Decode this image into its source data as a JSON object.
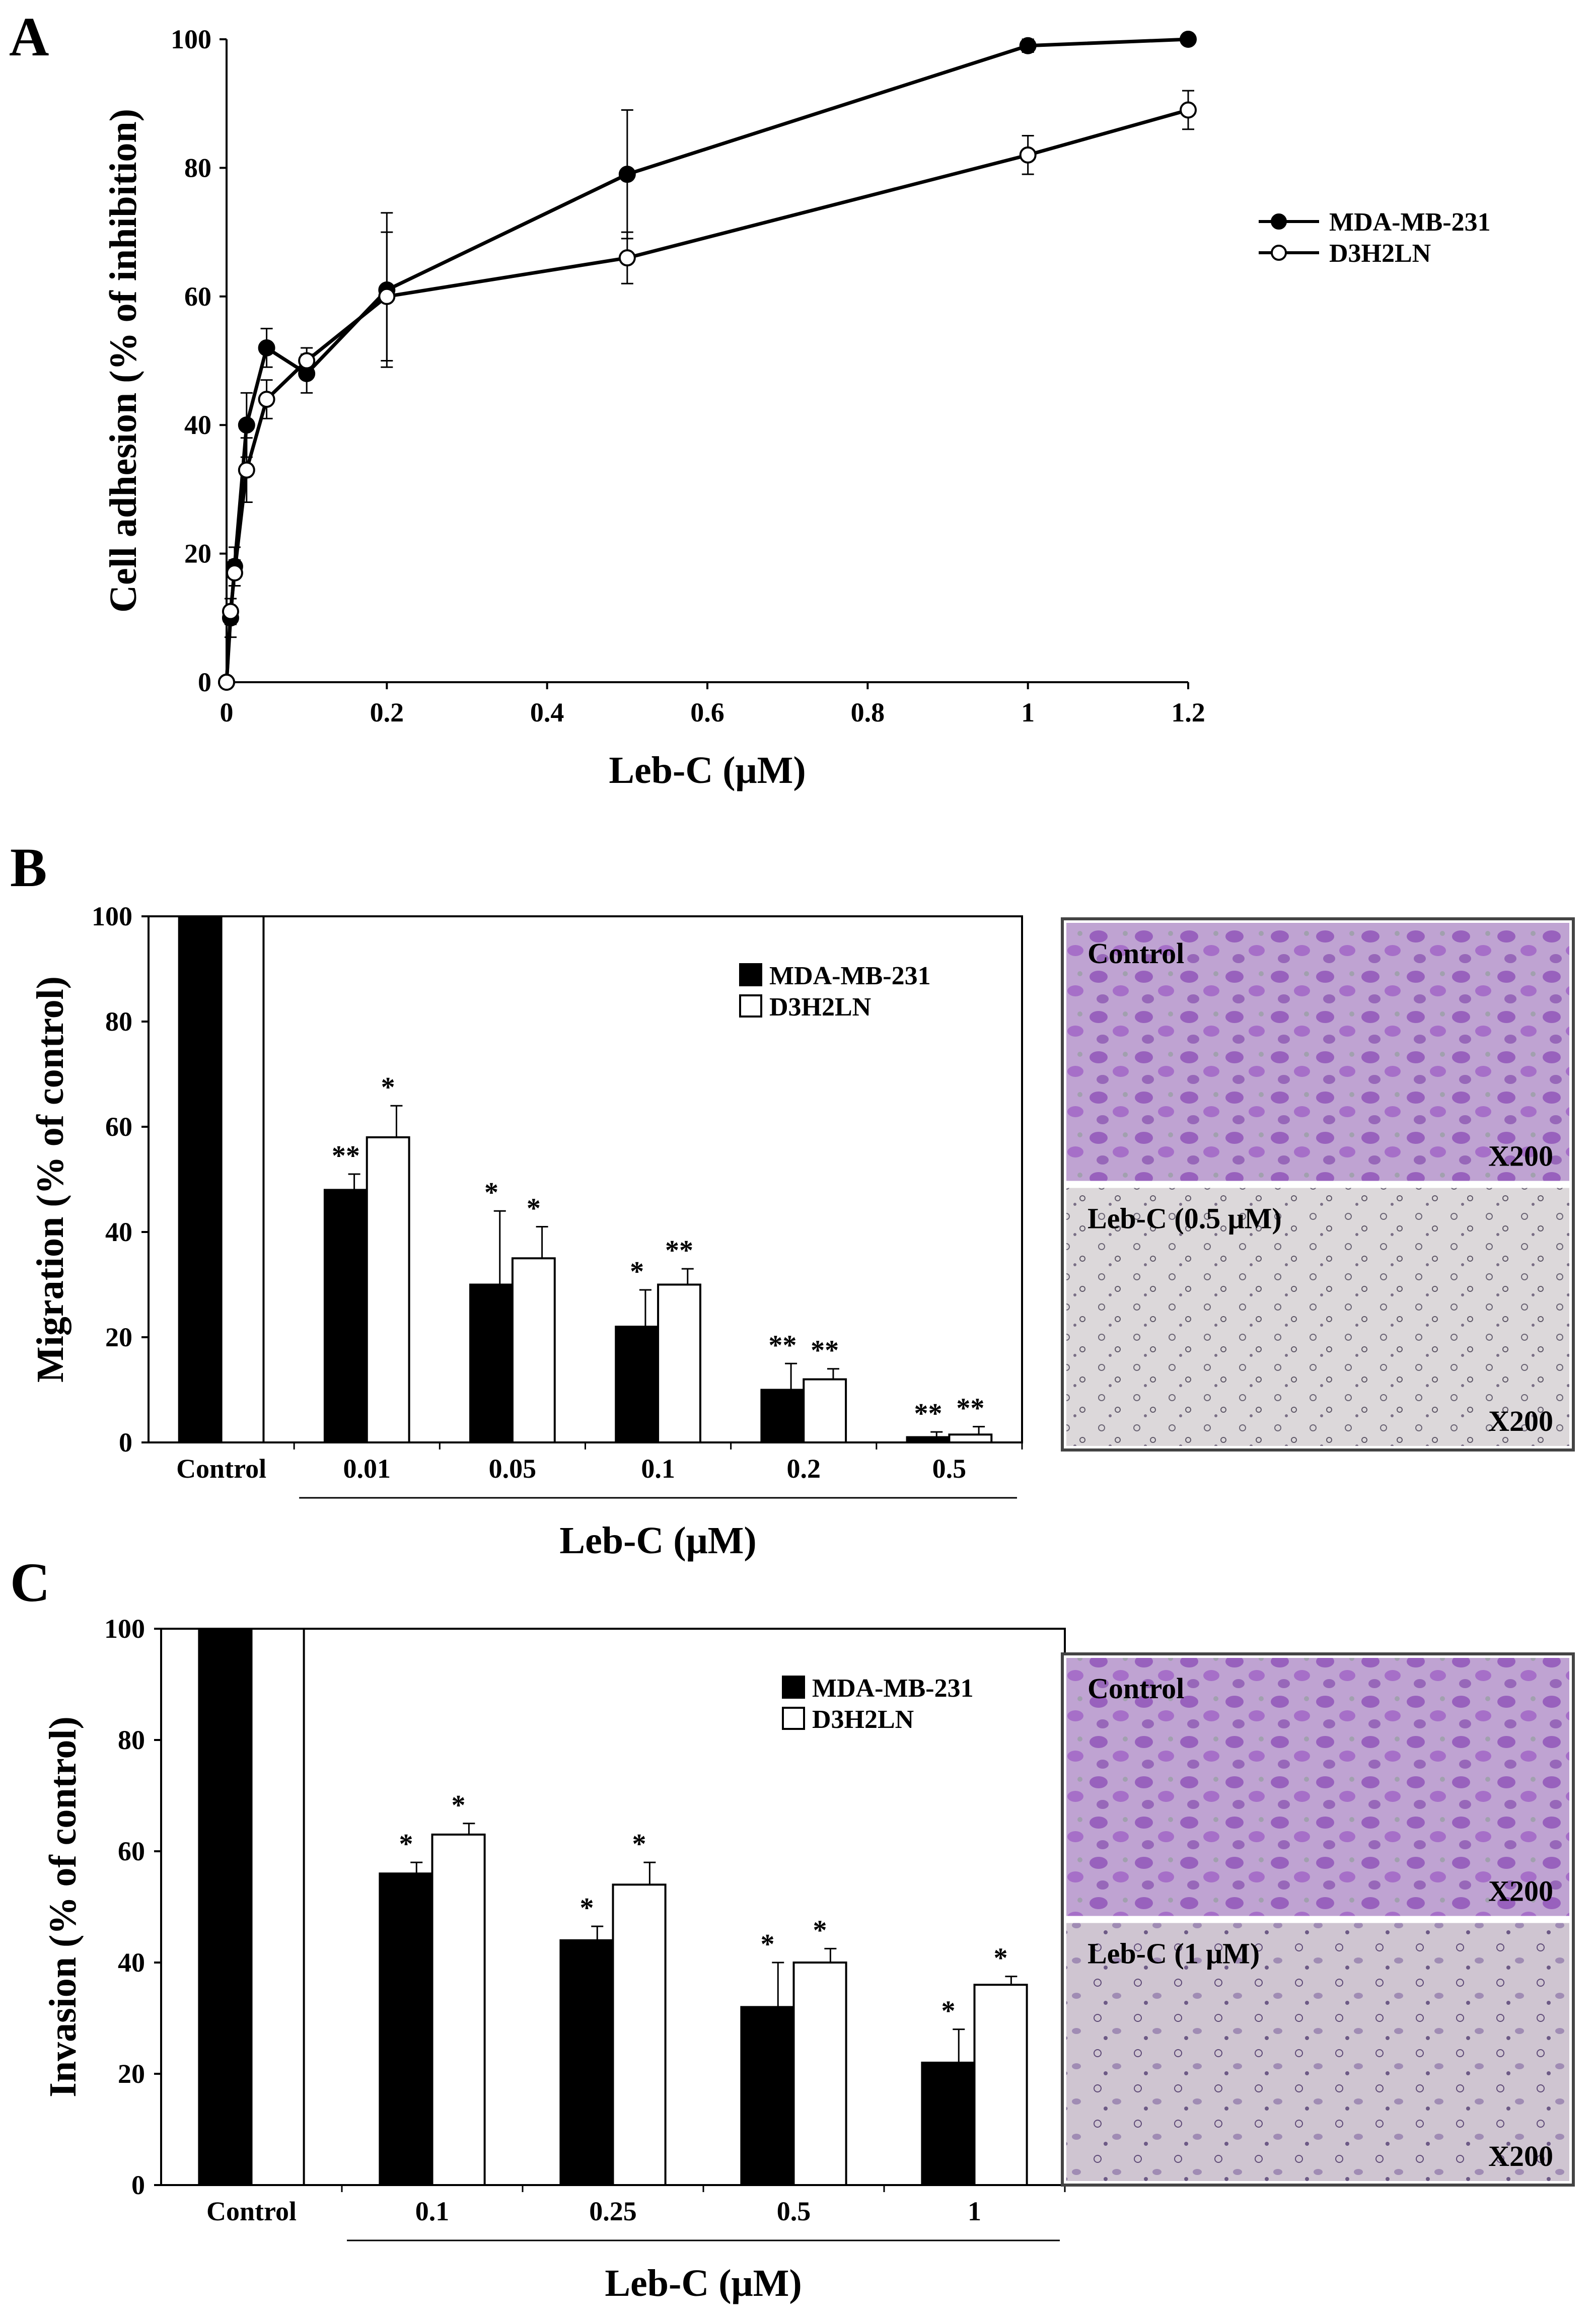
{
  "chart_data": [
    {
      "panel": "A",
      "type": "line",
      "ylabel": "Cell adhesion (% of inhibition)",
      "xlabel": "Leb-C (μM)",
      "xlim": [
        0,
        1.2
      ],
      "ylim": [
        0,
        100
      ],
      "xticks": [
        "0",
        "0.2",
        "0.4",
        "0.6",
        "0.8",
        "1",
        "1.2"
      ],
      "yticks": [
        "0",
        "20",
        "40",
        "60",
        "80",
        "100"
      ],
      "legend_position": "right",
      "series": [
        {
          "name": "MDA-MB-231",
          "marker": "filled",
          "x": [
            0,
            0.005,
            0.01,
            0.025,
            0.05,
            0.1,
            0.2,
            0.5,
            1,
            1.2
          ],
          "y": [
            0,
            10,
            18,
            40,
            52,
            48,
            61,
            79,
            99,
            100
          ],
          "err": [
            0,
            3,
            3,
            5,
            3,
            3,
            12,
            10,
            1,
            0.5
          ]
        },
        {
          "name": "D3H2LN",
          "marker": "open",
          "x": [
            0,
            0.005,
            0.01,
            0.025,
            0.05,
            0.1,
            0.2,
            0.5,
            1,
            1.2
          ],
          "y": [
            0,
            11,
            17,
            33,
            44,
            50,
            60,
            66,
            82,
            89
          ],
          "err": [
            0,
            2,
            2,
            5,
            3,
            2,
            10,
            4,
            3,
            3
          ]
        }
      ]
    },
    {
      "panel": "B",
      "type": "bar",
      "ylabel": "Migration (% of control)",
      "xlabel": "Leb-C (μM)",
      "ylim": [
        0,
        100
      ],
      "yticks": [
        "0",
        "20",
        "40",
        "60",
        "80",
        "100"
      ],
      "categories": [
        "Control",
        "0.01",
        "0.05",
        "0.1",
        "0.2",
        "0.5"
      ],
      "legend_position": "top-right",
      "series": [
        {
          "name": "MDA-MB-231",
          "color": "#000000",
          "values": [
            100,
            48,
            30,
            22,
            10,
            1
          ],
          "err": [
            0,
            3,
            14,
            7,
            5,
            1
          ],
          "sig": [
            "",
            "**",
            "*",
            "*",
            "**",
            "**"
          ]
        },
        {
          "name": "D3H2LN",
          "color": "#ffffff",
          "values": [
            100,
            58,
            35,
            30,
            12,
            1.5
          ],
          "err": [
            0,
            6,
            6,
            3,
            2,
            1.5
          ],
          "sig": [
            "",
            "*",
            "*",
            "**",
            "**",
            "**"
          ]
        }
      ]
    },
    {
      "panel": "C",
      "type": "bar",
      "ylabel": "Invasion (% of control)",
      "xlabel": "Leb-C (μM)",
      "ylim": [
        0,
        100
      ],
      "yticks": [
        "0",
        "20",
        "40",
        "60",
        "80",
        "100"
      ],
      "categories": [
        "Control",
        "0.1",
        "0.25",
        "0.5",
        "1"
      ],
      "legend_position": "top-right",
      "series": [
        {
          "name": "MDA-MB-231",
          "color": "#000000",
          "values": [
            100,
            56,
            44,
            32,
            22
          ],
          "err": [
            0,
            2,
            2.5,
            8,
            6
          ],
          "sig": [
            "",
            "*",
            "*",
            "*",
            "*"
          ]
        },
        {
          "name": "D3H2LN",
          "color": "#ffffff",
          "values": [
            100,
            63,
            54,
            40,
            36
          ],
          "err": [
            0,
            2,
            4,
            2.5,
            1.5
          ],
          "sig": [
            "",
            "*",
            "*",
            "*",
            "*"
          ]
        }
      ]
    }
  ],
  "micrographs": {
    "B": [
      {
        "label": "Control",
        "magnification": "X200",
        "fill": "#b694c9"
      },
      {
        "label": "Leb-C (0.5 μM)",
        "magnification": "X200",
        "fill": "#d6d1d3"
      }
    ],
    "C": [
      {
        "label": "Control",
        "magnification": "X200",
        "fill": "#ab88c3"
      },
      {
        "label": "Leb-C (1 μM)",
        "magnification": "X200",
        "fill": "#cabdcd"
      }
    ]
  },
  "panel_letters": [
    "A",
    "B",
    "C"
  ]
}
